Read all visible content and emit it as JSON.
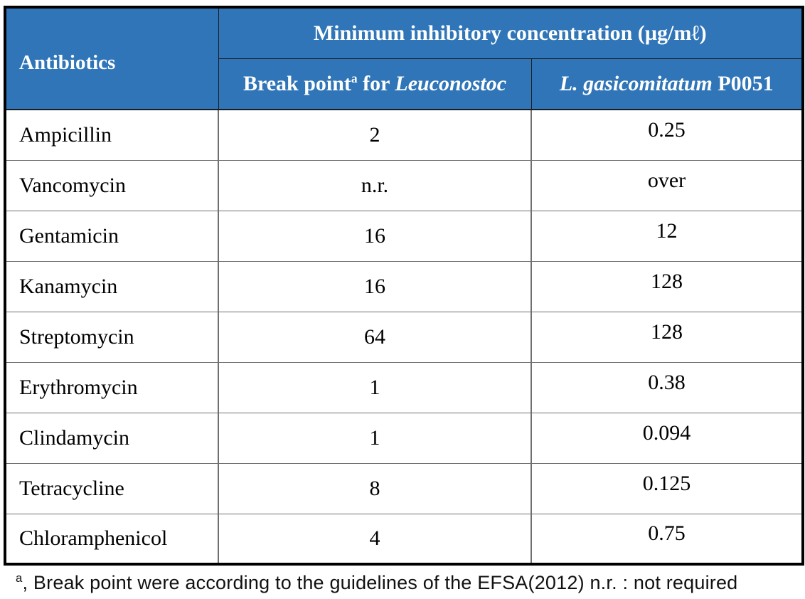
{
  "table": {
    "header": {
      "antibiotics": "Antibiotics",
      "mic_title": "Minimum inhibitory concentration (µg/mℓ)",
      "breakpoint": {
        "prefix": "Break point",
        "sup": "a",
        "mid": " for ",
        "genus": "Leuconostoc"
      },
      "strain": {
        "species": "L. gasicomitatum",
        "id": " P0051"
      }
    },
    "rows": [
      {
        "antibiotic": "Ampicillin",
        "breakpoint": "2",
        "mic": "0.25"
      },
      {
        "antibiotic": "Vancomycin",
        "breakpoint": "n.r.",
        "mic": "over"
      },
      {
        "antibiotic": "Gentamicin",
        "breakpoint": "16",
        "mic": "12"
      },
      {
        "antibiotic": "Kanamycin",
        "breakpoint": "16",
        "mic": "128"
      },
      {
        "antibiotic": "Streptomycin",
        "breakpoint": "64",
        "mic": "128"
      },
      {
        "antibiotic": "Erythromycin",
        "breakpoint": "1",
        "mic": "0.38"
      },
      {
        "antibiotic": "Clindamycin",
        "breakpoint": "1",
        "mic": "0.094"
      },
      {
        "antibiotic": "Tetracycline",
        "breakpoint": "8",
        "mic": "0.125"
      },
      {
        "antibiotic": "Chloramphenicol",
        "breakpoint": "4",
        "mic": "0.75"
      }
    ],
    "footnote": {
      "sup": "a",
      "text": ", Break point were according to the guidelines of the EFSA(2012) n.r. : not required"
    }
  },
  "colors": {
    "header_bg": "#2f75b7",
    "header_text": "#ffffff",
    "body_text": "#000000",
    "grid_line": "#6f6f6f",
    "outer_border": "#000000"
  }
}
